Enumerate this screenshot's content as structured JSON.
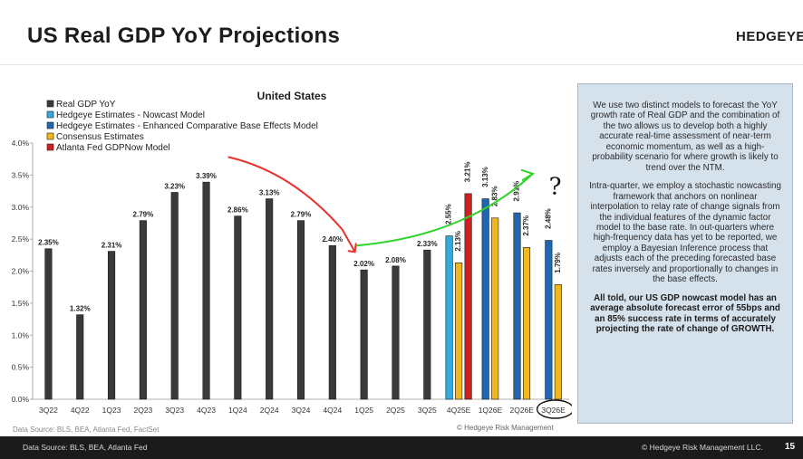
{
  "header": {
    "title": "US Real GDP YoY Projections",
    "logo": "HEDGEYE"
  },
  "chart_data": {
    "type": "bar",
    "title": "United States",
    "ylim": [
      0,
      4
    ],
    "y_ticks": [
      "0.0%",
      "0.5%",
      "1.0%",
      "1.5%",
      "2.0%",
      "2.5%",
      "3.0%",
      "3.5%",
      "4.0%"
    ],
    "grid": false,
    "legend_position": "top-left",
    "legend": [
      {
        "name": "Real GDP YoY",
        "color": "#3a3a3a"
      },
      {
        "name": "Hedgeye Estimates - Nowcast Model",
        "color": "#35a8dc"
      },
      {
        "name": "Hedgeye Estimates - Enhanced Comparative Base Effects Model",
        "color": "#1f67b1"
      },
      {
        "name": "Consensus Estimates",
        "color": "#f3b71b"
      },
      {
        "name": "Atlanta Fed GDPNow Model",
        "color": "#d21e1e"
      }
    ],
    "categories": [
      "3Q22",
      "4Q22",
      "1Q23",
      "2Q23",
      "3Q23",
      "4Q23",
      "1Q24",
      "2Q24",
      "3Q24",
      "4Q24",
      "1Q25",
      "2Q25",
      "3Q25",
      "4Q25E",
      "1Q26E",
      "2Q26E",
      "3Q26E"
    ],
    "series": [
      {
        "name": "Real GDP YoY",
        "color": "#3a3a3a",
        "values": [
          2.35,
          1.32,
          2.31,
          2.79,
          3.23,
          3.39,
          2.86,
          3.13,
          2.79,
          2.4,
          2.02,
          2.08,
          2.33,
          null,
          null,
          null,
          null
        ],
        "labels": [
          "2.35%",
          "1.32%",
          "2.31%",
          "2.79%",
          "3.23%",
          "3.39%",
          "2.86%",
          "3.13%",
          "2.79%",
          "2.40%",
          "2.02%",
          "2.08%",
          "2.33%",
          "",
          "",
          "",
          ""
        ]
      },
      {
        "name": "Hedgeye Estimates - Nowcast Model",
        "color": "#35a8dc",
        "values": [
          null,
          null,
          null,
          null,
          null,
          null,
          null,
          null,
          null,
          null,
          null,
          null,
          null,
          2.55,
          null,
          null,
          null
        ],
        "labels": [
          "",
          "",
          "",
          "",
          "",
          "",
          "",
          "",
          "",
          "",
          "",
          "",
          "",
          "2.55%",
          "",
          "",
          ""
        ]
      },
      {
        "name": "Hedgeye Estimates - Enhanced Comparative Base Effects Model",
        "color": "#1f67b1",
        "values": [
          null,
          null,
          null,
          null,
          null,
          null,
          null,
          null,
          null,
          null,
          null,
          null,
          null,
          null,
          3.13,
          2.91,
          2.48
        ],
        "labels": [
          "",
          "",
          "",
          "",
          "",
          "",
          "",
          "",
          "",
          "",
          "",
          "",
          "",
          "",
          "3.13%",
          "2.91%",
          "2.48%"
        ]
      },
      {
        "name": "Consensus Estimates",
        "color": "#f3b71b",
        "values": [
          null,
          null,
          null,
          null,
          null,
          null,
          null,
          null,
          null,
          null,
          null,
          null,
          null,
          2.13,
          2.83,
          2.37,
          1.79
        ],
        "labels": [
          "",
          "",
          "",
          "",
          "",
          "",
          "",
          "",
          "",
          "",
          "",
          "",
          "",
          "2.13%",
          "2.83%",
          "2.37%",
          "1.79%"
        ]
      },
      {
        "name": "Atlanta Fed GDPNow Model",
        "color": "#d21e1e",
        "values": [
          null,
          null,
          null,
          null,
          null,
          null,
          null,
          null,
          null,
          null,
          null,
          null,
          null,
          3.21,
          null,
          null,
          null
        ],
        "labels": [
          "",
          "",
          "",
          "",
          "",
          "",
          "",
          "",
          "",
          "",
          "",
          "",
          "",
          "3.21%",
          "",
          "",
          ""
        ]
      }
    ],
    "annotations": {
      "question_mark": "?"
    }
  },
  "chart_footnotes": {
    "source": "Data Source: BLS, BEA, Atlanta Fed, FactSet",
    "copyright": "© Hedgeye Risk Management"
  },
  "note_box": {
    "paragraph_1": "We use two distinct models to forecast the YoY growth rate of Real GDP and the combination of the two allows us to develop both a highly accurate real-time assessment of near-term economic momentum, as well as a high-probability scenario for where growth is likely to trend over the NTM.",
    "paragraph_2": "Intra-quarter, we employ a stochastic nowcasting framework that anchors on nonlinear interpolation to relay rate of change signals from the individual features of the dynamic factor model to the base rate. In out-quarters where high-frequency data has yet to be reported, we employ a Bayesian Inference process that adjusts each of the preceding forecasted base rates inversely and proportionally to changes in the base effects.",
    "paragraph_3": "All told, our US GDP nowcast model has an average absolute forecast error of 55bps and an 85% success rate in terms of accurately projecting the rate of change of GROWTH."
  },
  "footer": {
    "source": "Data Source: BLS, BEA, Atlanta Fed",
    "copyright": "© Hedgeye Risk Management LLC.",
    "page_number": "15"
  }
}
